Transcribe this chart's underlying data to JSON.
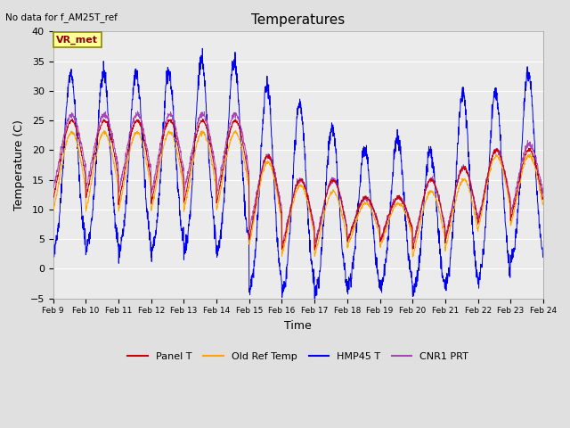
{
  "title": "Temperatures",
  "xlabel": "Time",
  "ylabel": "Temperature (C)",
  "no_data_text": "No data for f_AM25T_ref",
  "legend_label_text": "VR_met",
  "ylim": [
    -5,
    40
  ],
  "yticks": [
    -5,
    0,
    5,
    10,
    15,
    20,
    25,
    30,
    35,
    40
  ],
  "xlim_days": [
    9,
    24
  ],
  "xtick_days": [
    9,
    10,
    11,
    12,
    13,
    14,
    15,
    16,
    17,
    18,
    19,
    20,
    21,
    22,
    23,
    24
  ],
  "xtick_labels": [
    "Feb 9",
    "Feb 10",
    "Feb 11",
    "Feb 12",
    "Feb 13",
    "Feb 14",
    "Feb 15",
    "Feb 16",
    "Feb 17",
    "Feb 18",
    "Feb 19",
    "Feb 20",
    "Feb 21",
    "Feb 22",
    "Feb 23",
    "Feb 24"
  ],
  "colors": {
    "panel_t": "#CC0000",
    "old_ref": "#FFA500",
    "hmp45": "#0000EE",
    "cnr1": "#AA44BB"
  },
  "legend_entries": [
    "Panel T",
    "Old Ref Temp",
    "HMP45 T",
    "CNR1 PRT"
  ],
  "background_color": "#E0E0E0",
  "plot_bg": "#EBEBEB",
  "grid_color": "#FFFFFF"
}
